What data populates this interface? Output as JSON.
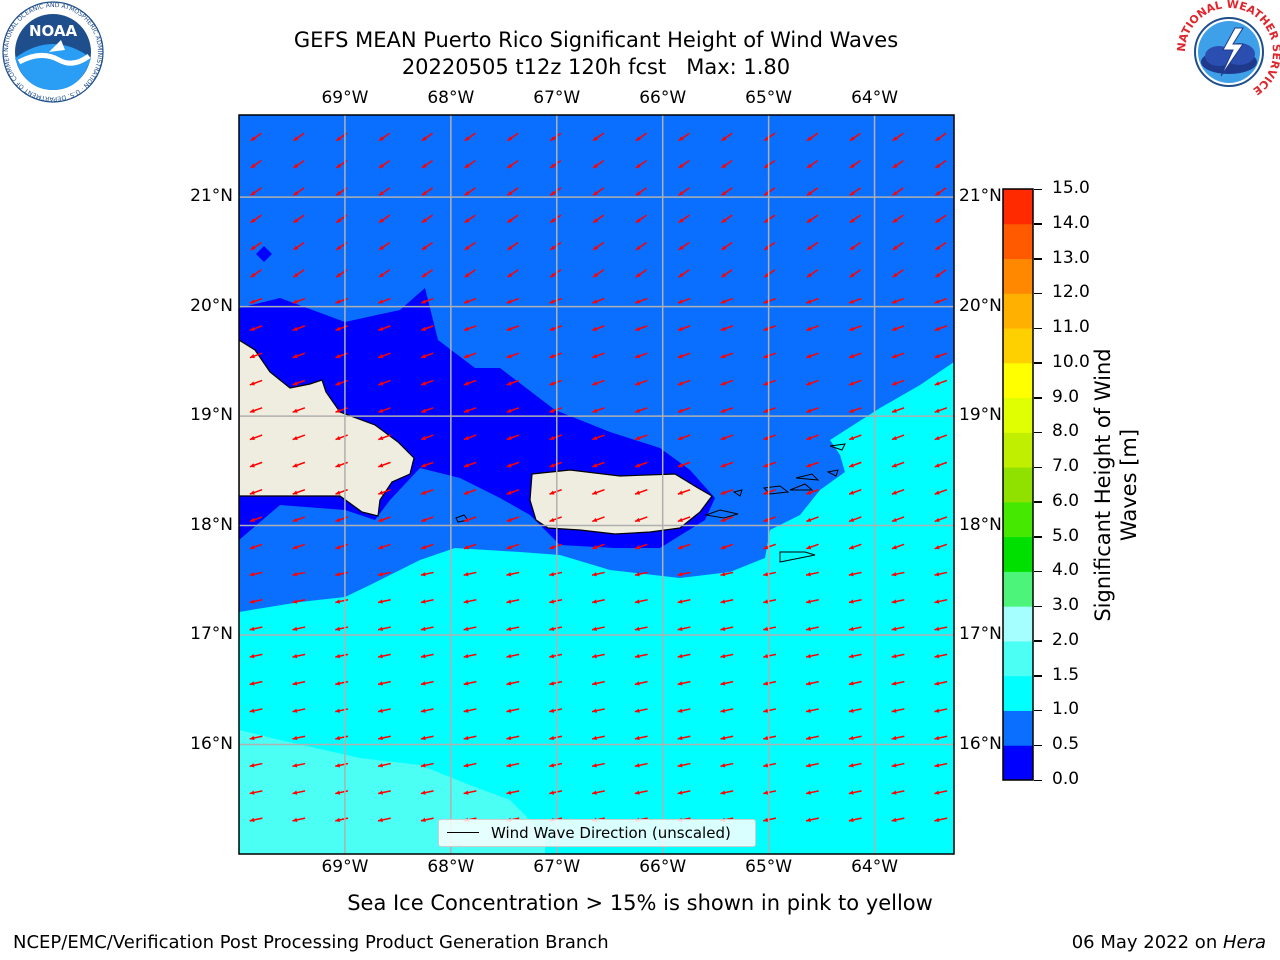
{
  "title": {
    "line1": "GEFS MEAN Puerto Rico Significant Height of Wind Waves",
    "line2": "20220505 t12z 120h fcst   Max: 1.80"
  },
  "logos": {
    "noaa": {
      "text": "NOAA",
      "ring_text": "NATIONAL OCEANIC AND ATMOSPHERIC ADMINISTRATION · U.S. DEPARTMENT OF COMMERCE",
      "color": "#1f4e8c"
    },
    "nws": {
      "ring_text": "NATIONAL WEATHER SERVICE",
      "color": "#e0242b"
    }
  },
  "map": {
    "lon_range": [
      -70.0,
      -63.25
    ],
    "lat_range": [
      15.0,
      21.75
    ],
    "lon_ticks": [
      "69°W",
      "68°W",
      "67°W",
      "66°W",
      "65°W",
      "64°W"
    ],
    "lat_ticks": [
      "21°N",
      "20°N",
      "19°N",
      "18°N",
      "17°N",
      "16°N"
    ],
    "grid": true,
    "vector_color": "#ff0000",
    "land_color": "#efeddf"
  },
  "legend": {
    "label": "Wind Wave Direction (unscaled)",
    "placement": "lower-center"
  },
  "colorbar": {
    "label": "Significant Height of Wind Waves [m]",
    "ticks": [
      "0.0",
      "0.5",
      "1.0",
      "1.5",
      "2.0",
      "3.0",
      "4.0",
      "5.0",
      "6.0",
      "7.0",
      "8.0",
      "9.0",
      "10.0",
      "11.0",
      "12.0",
      "13.0",
      "14.0",
      "15.0"
    ],
    "colors": [
      "#0000ff",
      "#0a6fff",
      "#00ffff",
      "#4cfff5",
      "#a6ffff",
      "#4cf57a",
      "#00e000",
      "#44e800",
      "#90e000",
      "#c0f000",
      "#e0ff00",
      "#ffff00",
      "#ffd000",
      "#ffb000",
      "#ff8800",
      "#ff5a00",
      "#ff2a00"
    ]
  },
  "caption": "Sea Ice Concentration > 15% is shown in pink to yellow",
  "footer": {
    "left": "NCEP/EMC/Verification Post Processing Product Generation Branch",
    "right_prefix": "06 May 2022 on ",
    "right_machine": "Hera"
  },
  "chart_data": {
    "type": "heatmap",
    "title": "GEFS MEAN Puerto Rico Significant Height of Wind Waves",
    "subtitle": "20220505 t12z 120h fcst   Max: 1.80",
    "variable": "Significant Height of Wind Waves [m]",
    "max": 1.8,
    "levels": [
      0.0,
      0.5,
      1.0,
      1.5,
      2.0,
      3.0,
      4.0,
      5.0,
      6.0,
      7.0,
      8.0,
      9.0,
      10.0,
      11.0,
      12.0,
      13.0,
      14.0,
      15.0
    ],
    "x_range": [
      -70.0,
      -63.25
    ],
    "y_range": [
      15.0,
      21.75
    ],
    "x_ticks": [
      -69,
      -68,
      -67,
      -66,
      -65,
      -64
    ],
    "y_ticks": [
      21,
      20,
      19,
      18,
      17,
      16
    ],
    "regions": [
      {
        "range": "1.5-2.0",
        "description": "southwest corner"
      },
      {
        "range": "1.0-1.5",
        "description": "south of 17.3N and east of Puerto Rico"
      },
      {
        "range": "0.5-1.0",
        "description": "north Atlantic and Mona Passage margins"
      },
      {
        "range": "0.0-0.5",
        "description": "lee of Hispaniola and north of Puerto Rico"
      }
    ],
    "wind_wave_direction": "toward west-southwest (easterly trade wind waves)",
    "legend": "lower-center",
    "grid": true
  }
}
